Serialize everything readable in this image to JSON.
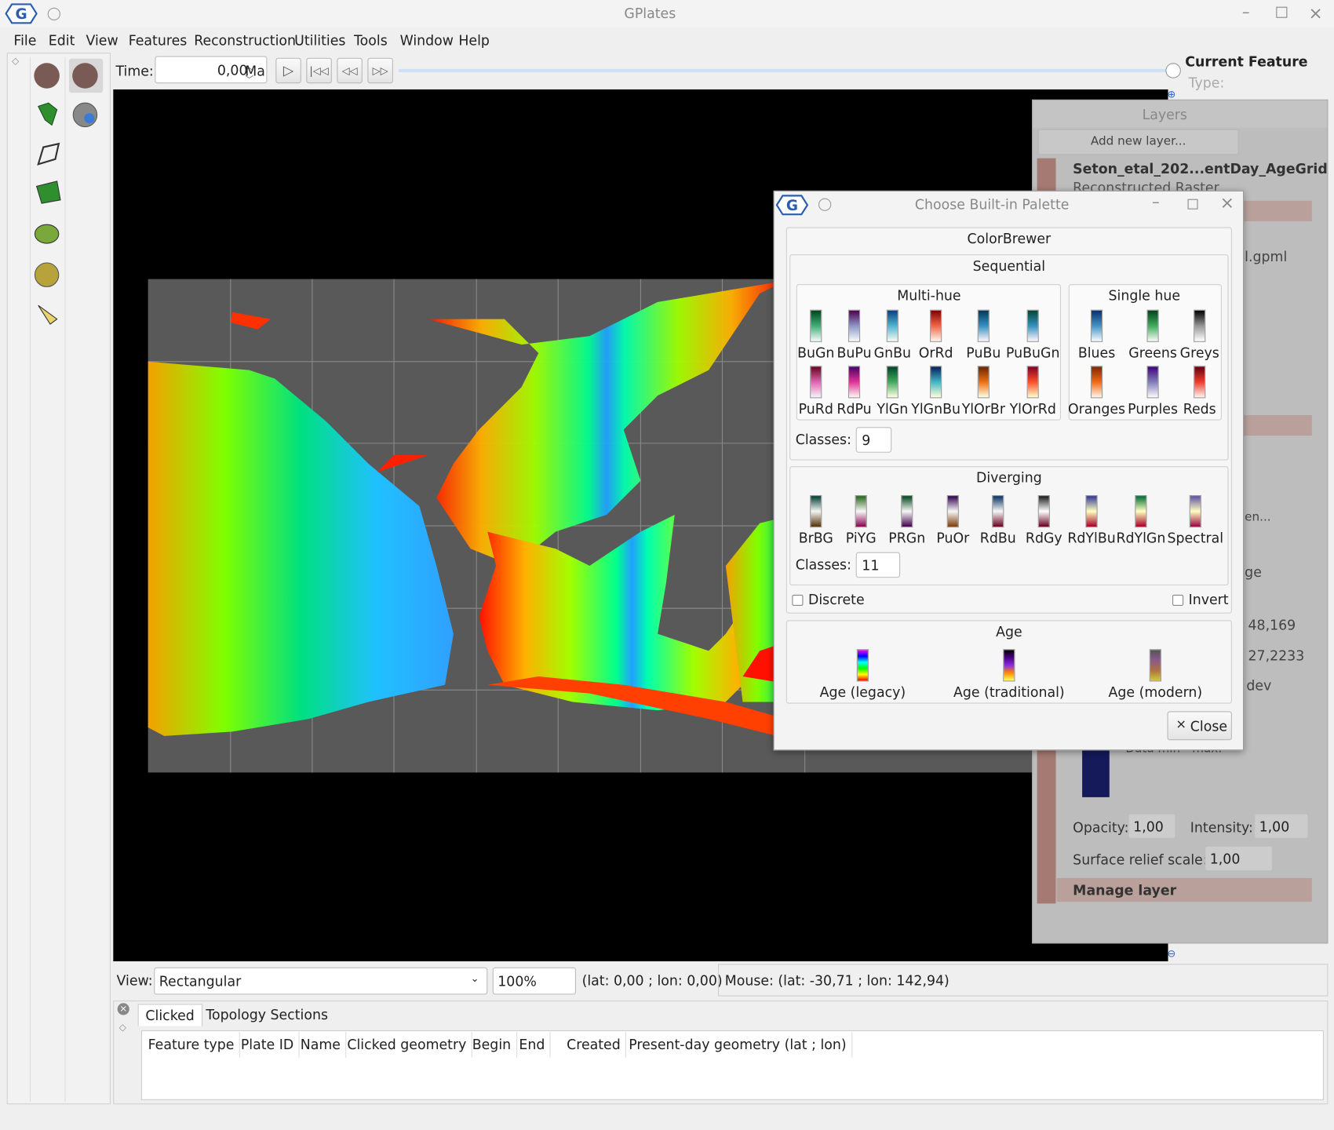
{
  "window": {
    "title": "GPlates",
    "menu": [
      "File",
      "Edit",
      "View",
      "Features",
      "Reconstruction",
      "Utilities",
      "Tools",
      "Window",
      "Help"
    ]
  },
  "toolbar": {
    "time_label": "Time:",
    "time_value": "0,00",
    "time_unit": "Ma"
  },
  "current_feature": {
    "title": "Current Feature",
    "type_label": "Type:"
  },
  "layers": {
    "title": "Layers",
    "add_button": "Add new layer...",
    "layer_name": "Seton_etal_202...entDay_AgeGrid",
    "layer_type": "Reconstructed Raster",
    "file": "l.gpml",
    "fragments": [
      "en...",
      "ge",
      "48,169",
      "27,2233",
      "dev",
      "Data min - max:"
    ],
    "opacity_label": "Opacity:",
    "opacity": "1,00",
    "intensity_label": "Intensity:",
    "intensity": "1,00",
    "relief_label": "Surface relief scale:",
    "relief": "1,00",
    "manage": "Manage layer"
  },
  "dialog": {
    "title": "Choose Built-in Palette",
    "group": "ColorBrewer",
    "sequential": {
      "title": "Sequential",
      "multi_hue": {
        "title": "Multi-hue",
        "palettes": [
          {
            "name": "BuGn",
            "colors": [
              "#00441b",
              "#41ae76",
              "#f7fcfd"
            ]
          },
          {
            "name": "BuPu",
            "colors": [
              "#4d004b",
              "#8c96c6",
              "#f7fcfd"
            ]
          },
          {
            "name": "GnBu",
            "colors": [
              "#084081",
              "#4eb3d3",
              "#f7fcf0"
            ]
          },
          {
            "name": "OrRd",
            "colors": [
              "#7f0000",
              "#ef6548",
              "#fff7ec"
            ]
          },
          {
            "name": "PuBu",
            "colors": [
              "#023858",
              "#3690c0",
              "#fff7fb"
            ]
          },
          {
            "name": "PuBuGn",
            "colors": [
              "#014636",
              "#3690c0",
              "#fff7fb"
            ]
          },
          {
            "name": "PuRd",
            "colors": [
              "#67001f",
              "#df65b0",
              "#f7f4f9"
            ]
          },
          {
            "name": "RdPu",
            "colors": [
              "#49006a",
              "#dd3497",
              "#fff7f3"
            ]
          },
          {
            "name": "YlGn",
            "colors": [
              "#004529",
              "#41ab5d",
              "#ffffe5"
            ]
          },
          {
            "name": "YlGnBu",
            "colors": [
              "#081d58",
              "#41b6c4",
              "#ffffd9"
            ]
          },
          {
            "name": "YlOrBr",
            "colors": [
              "#662506",
              "#ec7014",
              "#ffffe5"
            ]
          },
          {
            "name": "YlOrRd",
            "colors": [
              "#800026",
              "#fc4e2a",
              "#ffffcc"
            ]
          }
        ]
      },
      "single_hue": {
        "title": "Single hue",
        "palettes": [
          {
            "name": "Blues",
            "colors": [
              "#08306b",
              "#4292c6",
              "#f7fbff"
            ]
          },
          {
            "name": "Greens",
            "colors": [
              "#00441b",
              "#41ab5d",
              "#f7fcf5"
            ]
          },
          {
            "name": "Greys",
            "colors": [
              "#000000",
              "#969696",
              "#ffffff"
            ]
          },
          {
            "name": "Oranges",
            "colors": [
              "#7f2704",
              "#f16913",
              "#fff5eb"
            ]
          },
          {
            "name": "Purples",
            "colors": [
              "#3f007d",
              "#807dba",
              "#fcfbfd"
            ]
          },
          {
            "name": "Reds",
            "colors": [
              "#67000d",
              "#ef3b2c",
              "#fff5f0"
            ]
          }
        ]
      },
      "classes_label": "Classes:",
      "classes": "9"
    },
    "diverging": {
      "title": "Diverging",
      "palettes": [
        {
          "name": "BrBG",
          "colors": [
            "#003c30",
            "#f5f5f5",
            "#543005"
          ]
        },
        {
          "name": "PiYG",
          "colors": [
            "#276419",
            "#f7f7f7",
            "#8e0152"
          ]
        },
        {
          "name": "PRGn",
          "colors": [
            "#00441b",
            "#f7f7f7",
            "#40004b"
          ]
        },
        {
          "name": "PuOr",
          "colors": [
            "#2d004b",
            "#f7f7f7",
            "#7f3b08"
          ]
        },
        {
          "name": "RdBu",
          "colors": [
            "#053061",
            "#f7f7f7",
            "#67001f"
          ]
        },
        {
          "name": "RdGy",
          "colors": [
            "#1a1a1a",
            "#ffffff",
            "#67001f"
          ]
        },
        {
          "name": "RdYlBu",
          "colors": [
            "#313695",
            "#ffffbf",
            "#a50026"
          ]
        },
        {
          "name": "RdYlGn",
          "colors": [
            "#006837",
            "#ffffbf",
            "#a50026"
          ]
        },
        {
          "name": "Spectral",
          "colors": [
            "#5e4fa2",
            "#ffffbf",
            "#9e0142"
          ]
        }
      ],
      "classes_label": "Classes:",
      "classes": "11"
    },
    "discrete": "Discrete",
    "invert": "Invert",
    "age": {
      "title": "Age",
      "palettes": [
        {
          "name": "Age (legacy)",
          "colors": [
            "#ff00ff",
            "#0000ff",
            "#00ffff",
            "#00ff00",
            "#ffff00",
            "#ff0000"
          ]
        },
        {
          "name": "Age (traditional)",
          "colors": [
            "#000000",
            "#4b0082",
            "#8a2be2",
            "#ff8c00",
            "#ffff66"
          ]
        },
        {
          "name": "Age (modern)",
          "colors": [
            "#555555",
            "#8b5a8b",
            "#b07040",
            "#d4c840"
          ]
        }
      ]
    },
    "close": "Close"
  },
  "status": {
    "view_label": "View:",
    "view": "Rectangular",
    "zoom": "100%",
    "center": "(lat: 0,00 ; lon: 0,00)",
    "mouse": "Mouse: (lat: -30,71 ; lon: 142,94)"
  },
  "bottom": {
    "tabs": [
      "Clicked",
      "Topology Sections"
    ],
    "columns": [
      "Feature type",
      "Plate ID",
      "Name",
      "Clicked geometry",
      "Begin",
      "End",
      "Created",
      "Present-day geometry (lat ; lon)"
    ]
  }
}
